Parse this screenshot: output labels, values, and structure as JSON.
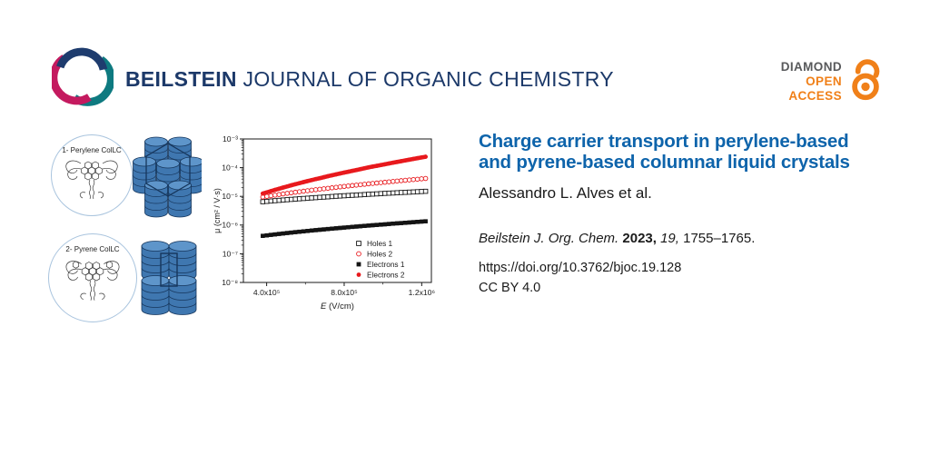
{
  "brand": {
    "name_bold": "BEILSTEIN",
    "name_rest": " JOURNAL OF ORGANIC CHEMISTRY"
  },
  "badge": {
    "diamond": "DIAMOND",
    "open": "OPEN",
    "access": "ACCESS"
  },
  "figure": {
    "sample1_label": "1- Perylene ColLC",
    "sample2_label": "2- Pyrene ColLC"
  },
  "article": {
    "title": "Charge carrier transport in perylene-based and pyrene-based columnar liquid crystals",
    "authors": "Alessandro L. Alves et al.",
    "citation_journal": "Beilstein J. Org. Chem.",
    "citation_year": " 2023, ",
    "citation_volume": "19, ",
    "citation_pages": "1755–1765.",
    "doi": "https://doi.org/10.3762/bjoc.19.128",
    "license": "CC BY 4.0"
  },
  "colors": {
    "brand_navy": "#1c3969",
    "title_blue": "#0e64ab",
    "accent_orange": "#f08019",
    "badge_gray": "#58595b",
    "series_red": "#e8191d",
    "series_black": "#141414",
    "column_blue_top": "#5e95ca",
    "column_blue_side": "#3f77b0",
    "column_outline": "#16365c",
    "swirl_navy": "#1e3c6e",
    "swirl_teal": "#0e7a80",
    "swirl_crimson": "#c41a5f"
  },
  "chart_data": {
    "type": "scatter",
    "title": "",
    "xlabel_italic": "E",
    "xlabel_rest": " (V/cm)",
    "ylabel": "μ (cm² / V·s)",
    "x_scale": "linear",
    "y_scale": "log",
    "xlim": [
      280000,
      1250000
    ],
    "ylim": [
      1e-08,
      0.001
    ],
    "grid": false,
    "x_ticks": [
      {
        "value": 400000,
        "label": "4.0x10⁵"
      },
      {
        "value": 800000,
        "label": "8.0x10⁵"
      },
      {
        "value": 1200000,
        "label": "1.2x10⁶"
      }
    ],
    "x_minor_ticks": [
      600000,
      1000000
    ],
    "y_ticks": [
      {
        "value": 0.001,
        "label": "10⁻³"
      },
      {
        "value": 0.0001,
        "label": "10⁻⁴"
      },
      {
        "value": 1e-05,
        "label": "10⁻⁵"
      },
      {
        "value": 1e-06,
        "label": "10⁻⁶"
      },
      {
        "value": 1e-07,
        "label": "10⁻⁷"
      },
      {
        "value": 1e-08,
        "label": "10⁻⁸"
      }
    ],
    "legend": {
      "position": "lower right",
      "entries": [
        {
          "label": "Holes 1",
          "marker": "open-square",
          "color": "#141414"
        },
        {
          "label": "Holes 2",
          "marker": "open-circle",
          "color": "#e8191d"
        },
        {
          "label": "Electrons 1",
          "marker": "filled-square",
          "color": "#141414"
        },
        {
          "label": "Electrons 2",
          "marker": "filled-circle",
          "color": "#e8191d"
        }
      ]
    },
    "series": [
      {
        "name": "Holes 1",
        "marker": "open-square",
        "color": "#141414",
        "points": [
          [
            380000,
            6.5e-06
          ],
          [
            422000,
            6.88e-06
          ],
          [
            464000,
            7.26e-06
          ],
          [
            506000,
            7.65e-06
          ],
          [
            548000,
            8.04e-06
          ],
          [
            590000,
            8.43e-06
          ],
          [
            632000,
            8.83e-06
          ],
          [
            674000,
            9.23e-06
          ],
          [
            716000,
            9.64e-06
          ],
          [
            758000,
            1.01e-05
          ],
          [
            800000,
            1.05e-05
          ],
          [
            842000,
            1.09e-05
          ],
          [
            884000,
            1.13e-05
          ],
          [
            926000,
            1.18e-05
          ],
          [
            968000,
            1.22e-05
          ],
          [
            1010000,
            1.27e-05
          ],
          [
            1052000,
            1.31e-05
          ],
          [
            1094000,
            1.36e-05
          ],
          [
            1136000,
            1.4e-05
          ],
          [
            1178000,
            1.45e-05
          ],
          [
            1220000,
            1.5e-05
          ]
        ]
      },
      {
        "name": "Holes 2",
        "marker": "open-circle",
        "color": "#e8191d",
        "points": [
          [
            380000,
            9.51e-06
          ],
          [
            422000,
            1.05e-05
          ],
          [
            464000,
            1.16e-05
          ],
          [
            506000,
            1.27e-05
          ],
          [
            548000,
            1.39e-05
          ],
          [
            590000,
            1.51e-05
          ],
          [
            632000,
            1.64e-05
          ],
          [
            674000,
            1.77e-05
          ],
          [
            716000,
            1.91e-05
          ],
          [
            758000,
            2.06e-05
          ],
          [
            800000,
            2.22e-05
          ],
          [
            842000,
            2.38e-05
          ],
          [
            884000,
            2.55e-05
          ],
          [
            926000,
            2.73e-05
          ],
          [
            968000,
            2.91e-05
          ],
          [
            1010000,
            3.1e-05
          ],
          [
            1052000,
            3.31e-05
          ],
          [
            1094000,
            3.52e-05
          ],
          [
            1136000,
            3.74e-05
          ],
          [
            1178000,
            3.96e-05
          ],
          [
            1220000,
            4.2e-05
          ]
        ]
      },
      {
        "name": "Electrons 1",
        "marker": "filled-square",
        "color": "#141414",
        "points": [
          [
            380000,
            4.2e-07
          ],
          [
            422000,
            4.54e-07
          ],
          [
            464000,
            4.9e-07
          ],
          [
            506000,
            5.27e-07
          ],
          [
            548000,
            5.65e-07
          ],
          [
            590000,
            6.03e-07
          ],
          [
            632000,
            6.44e-07
          ],
          [
            674000,
            6.85e-07
          ],
          [
            716000,
            7.27e-07
          ],
          [
            758000,
            7.71e-07
          ],
          [
            800000,
            8.16e-07
          ],
          [
            842000,
            8.63e-07
          ],
          [
            884000,
            9.11e-07
          ],
          [
            926000,
            9.6e-07
          ],
          [
            968000,
            1.01e-06
          ],
          [
            1010000,
            1.06e-06
          ],
          [
            1052000,
            1.12e-06
          ],
          [
            1094000,
            1.17e-06
          ],
          [
            1136000,
            1.23e-06
          ],
          [
            1178000,
            1.29e-06
          ],
          [
            1220000,
            1.35e-06
          ]
        ]
      },
      {
        "name": "Electrons 2",
        "marker": "filled-circle",
        "color": "#e8191d",
        "points": [
          [
            380000,
            1.25e-05
          ],
          [
            422000,
            1.53e-05
          ],
          [
            464000,
            1.85e-05
          ],
          [
            506000,
            2.22e-05
          ],
          [
            548000,
            2.65e-05
          ],
          [
            590000,
            3.13e-05
          ],
          [
            632000,
            3.69e-05
          ],
          [
            674000,
            4.31e-05
          ],
          [
            716000,
            5.03e-05
          ],
          [
            758000,
            5.82e-05
          ],
          [
            800000,
            6.73e-05
          ],
          [
            842000,
            7.74e-05
          ],
          [
            884000,
            8.88e-05
          ],
          [
            926000,
            0.000102
          ],
          [
            968000,
            0.000116
          ],
          [
            1010000,
            0.000131
          ],
          [
            1052000,
            0.000149
          ],
          [
            1094000,
            0.000168
          ],
          [
            1136000,
            0.00019
          ],
          [
            1178000,
            0.000214
          ],
          [
            1220000,
            0.00024
          ]
        ]
      }
    ]
  }
}
